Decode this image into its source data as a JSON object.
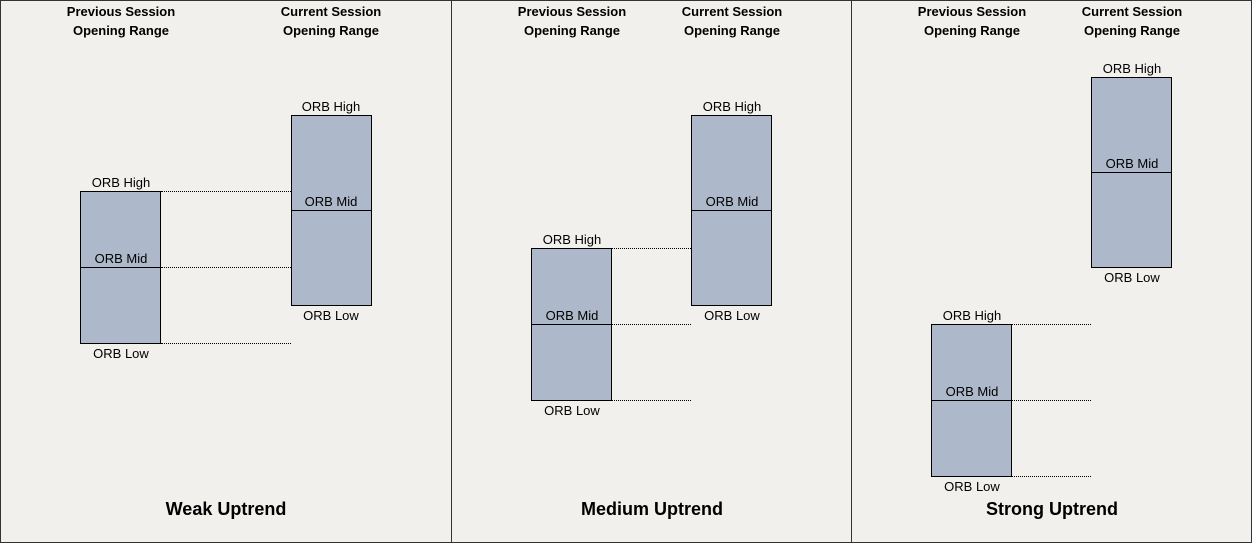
{
  "panels": [
    {
      "title": "Weak Uptrend",
      "header_prev": "Previous Session Opening Range",
      "header_curr": "Current Session Opening Range",
      "labels": {
        "high": "ORB High",
        "mid": "ORB Mid",
        "low": "ORB Low"
      }
    },
    {
      "title": "Medium Uptrend",
      "header_prev": "Previous Session Opening Range",
      "header_curr": "Current Session Opening Range",
      "labels": {
        "high": "ORB High",
        "mid": "ORB Mid",
        "low": "ORB Low"
      }
    },
    {
      "title": "Strong Uptrend",
      "header_prev": "Previous Session Opening Range",
      "header_curr": "Current Session Opening Range",
      "labels": {
        "high": "ORB High",
        "mid": "ORB Mid",
        "low": "ORB Low"
      }
    }
  ],
  "colors": {
    "box_fill": "#adb9ca",
    "background": "#f2f0ed"
  }
}
